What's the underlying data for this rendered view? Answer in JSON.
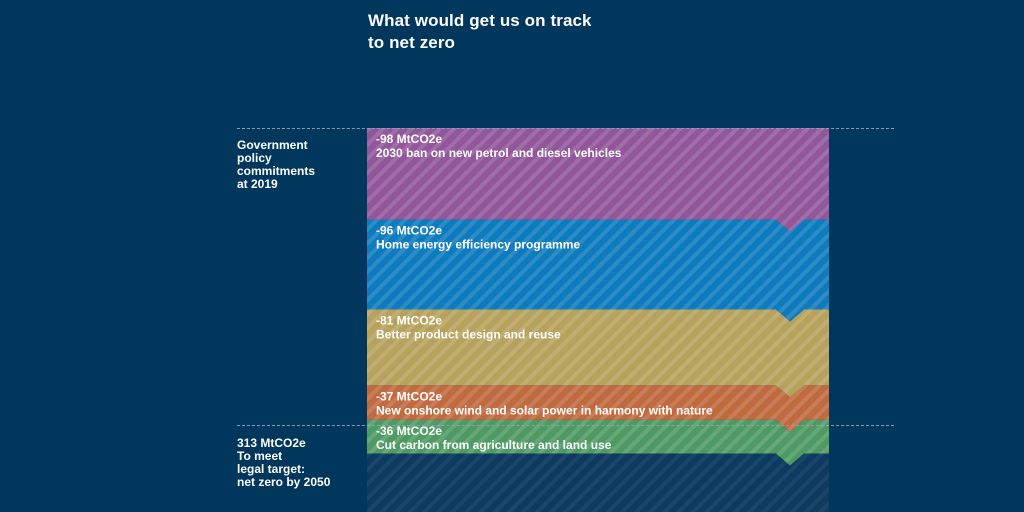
{
  "title_lines": [
    "What would get us on track",
    "to net zero"
  ],
  "side_labels": {
    "top": "Government\npolicy\ncommitments\nat 2019",
    "bottom": "313 MtCO2e\nTo meet\nlegal target:\nnet zero by 2050"
  },
  "chart_data": {
    "type": "bar",
    "title": "What would get us on track to net zero",
    "unit": "MtCO2e",
    "segments": [
      {
        "value_label": "-98 MtCO2e",
        "label": "2030 ban on new petrol and diesel vehicles",
        "value": -98,
        "color": "#91579a"
      },
      {
        "value_label": "-96 MtCO2e",
        "label": "Home energy efficiency programme",
        "value": -96,
        "color": "#0e7bbd"
      },
      {
        "value_label": "-81 MtCO2e",
        "label": "Better product design and reuse",
        "value": -81,
        "color": "#b7a25d"
      },
      {
        "value_label": "-37 MtCO2e",
        "label": "New onshore wind and solar power in harmony with nature",
        "value": -37,
        "color": "#c06a3f"
      },
      {
        "value_label": "-36 MtCO2e",
        "label": "Cut carbon from agriculture and land use",
        "value": -36,
        "color": "#4f9a63"
      }
    ],
    "remaining": {
      "value": 313,
      "color": "#0c3a60"
    }
  }
}
